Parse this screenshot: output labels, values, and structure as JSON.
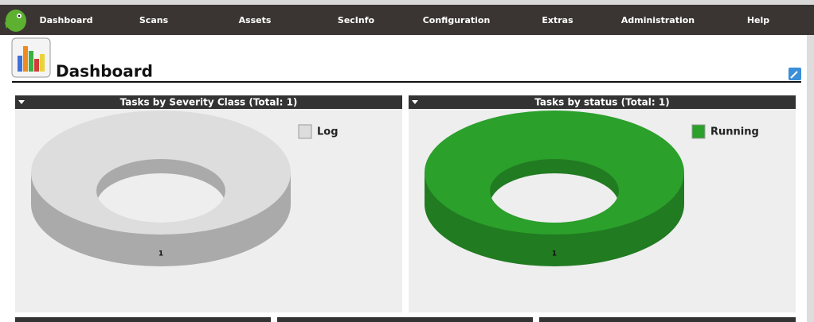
{
  "nav": [
    "Dashboard",
    "Scans",
    "Assets",
    "SecInfo",
    "Configuration",
    "Extras",
    "Administration",
    "Help"
  ],
  "page_title": "Dashboard",
  "chart_data": [
    {
      "type": "donut",
      "title": "Tasks by Severity Class (Total: 1)",
      "categories": [
        "Log"
      ],
      "values": [
        1
      ],
      "colors": [
        "#dddddd"
      ],
      "legend": "top-right"
    },
    {
      "type": "donut",
      "title": "Tasks by status (Total: 1)",
      "categories": [
        "Running"
      ],
      "values": [
        1
      ],
      "colors": [
        "#2ba02b"
      ],
      "legend": "top-right"
    }
  ]
}
